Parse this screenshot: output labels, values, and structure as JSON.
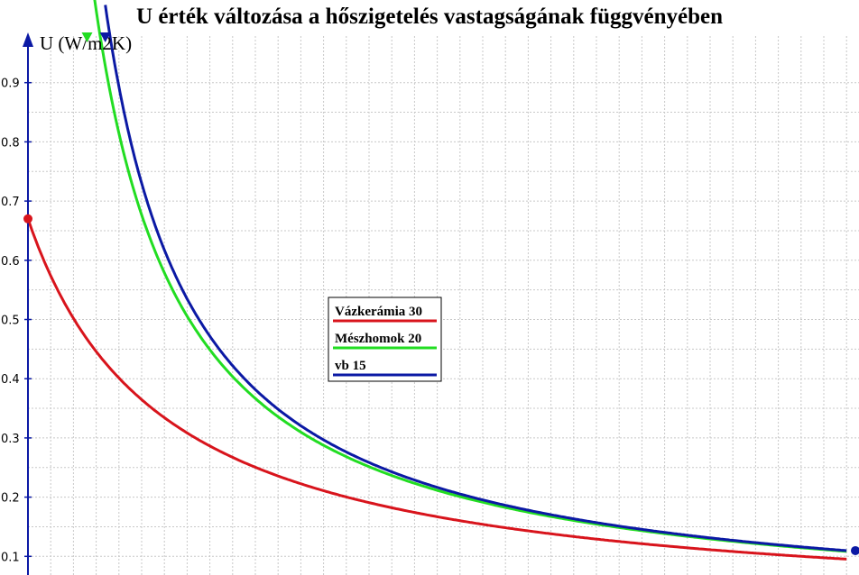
{
  "chart_data": {
    "type": "line",
    "title": "U érték változása a hőszigetelés vastagságának függvényében",
    "ylabel": "U (W/m2K)",
    "xlabel": "",
    "ylim": [
      0.085,
      0.985
    ],
    "xlim": [
      0,
      36
    ],
    "y_ticks": [
      "0.1",
      "0.2",
      "0.3",
      "0.4",
      "0.5",
      "0.6",
      "0.7",
      "0.8",
      "0.9"
    ],
    "grid": true,
    "legend_position": "center",
    "series": [
      {
        "name": "Vázkerámia 30",
        "color": "#d8141c",
        "R0": 1.4925,
        "x_start": 0,
        "x_end": 36,
        "start_marker": "circle",
        "end_marker": "none"
      },
      {
        "name": "Mészhomok 20",
        "color": "#22dd22",
        "R0": 0.2278,
        "x_start": 2.6,
        "x_end": 36,
        "start_marker": "triangle-down",
        "end_marker": "none"
      },
      {
        "name": "vb 15",
        "color": "#0b19a4",
        "R0": 0.1198,
        "x_start": 3.4,
        "x_end": 36,
        "start_marker": "triangle-down",
        "end_marker": "circle"
      }
    ]
  }
}
